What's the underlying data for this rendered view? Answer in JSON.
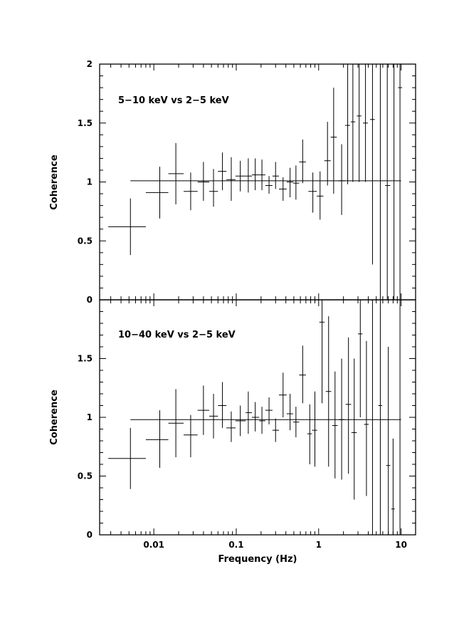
{
  "chart_data": [
    {
      "type": "scatter",
      "panel": "top",
      "annotation": "5−10 keV vs 2−5 keV",
      "ylabel": "Coherence",
      "xlabel": "",
      "xscale": "log",
      "xlim": [
        0.0022,
        15
      ],
      "ylim": [
        0,
        2
      ],
      "yticks": [
        0,
        0.5,
        1,
        1.5,
        2
      ],
      "ytick_labels": [
        "0",
        "0.5",
        "1",
        "1.5",
        "2"
      ],
      "reference_line": 1.01,
      "points": [
        {
          "x": 0.0052,
          "xlo": 0.0028,
          "xhi": 0.008,
          "y": 0.62,
          "ylo": 0.38,
          "yhi": 0.86
        },
        {
          "x": 0.0118,
          "xlo": 0.008,
          "xhi": 0.015,
          "y": 0.91,
          "ylo": 0.69,
          "yhi": 1.13
        },
        {
          "x": 0.0185,
          "xlo": 0.015,
          "xhi": 0.023,
          "y": 1.07,
          "ylo": 0.81,
          "yhi": 1.33
        },
        {
          "x": 0.028,
          "xlo": 0.023,
          "xhi": 0.034,
          "y": 0.92,
          "ylo": 0.76,
          "yhi": 1.08
        },
        {
          "x": 0.04,
          "xlo": 0.034,
          "xhi": 0.047,
          "y": 1.0,
          "ylo": 0.84,
          "yhi": 1.17
        },
        {
          "x": 0.053,
          "xlo": 0.047,
          "xhi": 0.06,
          "y": 0.92,
          "ylo": 0.79,
          "yhi": 1.11
        },
        {
          "x": 0.068,
          "xlo": 0.06,
          "xhi": 0.076,
          "y": 1.09,
          "ylo": 0.93,
          "yhi": 1.25
        },
        {
          "x": 0.087,
          "xlo": 0.076,
          "xhi": 0.098,
          "y": 1.02,
          "ylo": 0.84,
          "yhi": 1.21
        },
        {
          "x": 0.112,
          "xlo": 0.098,
          "xhi": 0.13,
          "y": 1.05,
          "ylo": 0.92,
          "yhi": 1.18
        },
        {
          "x": 0.14,
          "xlo": 0.13,
          "xhi": 0.155,
          "y": 1.05,
          "ylo": 0.91,
          "yhi": 1.2
        },
        {
          "x": 0.17,
          "xlo": 0.155,
          "xhi": 0.19,
          "y": 1.06,
          "ylo": 0.93,
          "yhi": 1.2
        },
        {
          "x": 0.205,
          "xlo": 0.19,
          "xhi": 0.225,
          "y": 1.06,
          "ylo": 0.93,
          "yhi": 1.19
        },
        {
          "x": 0.25,
          "xlo": 0.225,
          "xhi": 0.275,
          "y": 0.97,
          "ylo": 0.9,
          "yhi": 1.05
        },
        {
          "x": 0.3,
          "xlo": 0.275,
          "xhi": 0.33,
          "y": 1.05,
          "ylo": 0.94,
          "yhi": 1.17
        },
        {
          "x": 0.37,
          "xlo": 0.33,
          "xhi": 0.41,
          "y": 0.94,
          "ylo": 0.84,
          "yhi": 1.04
        },
        {
          "x": 0.45,
          "xlo": 0.41,
          "xhi": 0.49,
          "y": 1.0,
          "ylo": 0.87,
          "yhi": 1.12
        },
        {
          "x": 0.53,
          "xlo": 0.49,
          "xhi": 0.58,
          "y": 0.99,
          "ylo": 0.85,
          "yhi": 1.14
        },
        {
          "x": 0.64,
          "xlo": 0.58,
          "xhi": 0.7,
          "y": 1.17,
          "ylo": 0.99,
          "yhi": 1.36
        },
        {
          "x": 0.85,
          "xlo": 0.75,
          "xhi": 0.95,
          "y": 0.92,
          "ylo": 0.74,
          "yhi": 1.08
        },
        {
          "x": 1.04,
          "xlo": 0.95,
          "xhi": 1.14,
          "y": 0.88,
          "ylo": 0.68,
          "yhi": 1.09
        },
        {
          "x": 1.28,
          "xlo": 1.17,
          "xhi": 1.4,
          "y": 1.18,
          "ylo": 0.97,
          "yhi": 1.51
        },
        {
          "x": 1.52,
          "xlo": 1.4,
          "xhi": 1.66,
          "y": 1.38,
          "ylo": 0.9,
          "yhi": 1.8
        },
        {
          "x": 1.9,
          "xlo": 1.73,
          "xhi": 2.08,
          "y": 1.01,
          "ylo": 0.72,
          "yhi": 1.32
        },
        {
          "x": 2.25,
          "xlo": 2.1,
          "xhi": 2.4,
          "y": 1.48,
          "ylo": 0.98,
          "yhi": 2.0
        },
        {
          "x": 2.6,
          "xlo": 2.45,
          "xhi": 2.78,
          "y": 1.51,
          "ylo": 1.0,
          "yhi": 2.0
        },
        {
          "x": 3.1,
          "xlo": 2.9,
          "xhi": 3.3,
          "y": 1.56,
          "ylo": 1.0,
          "yhi": 2.0
        },
        {
          "x": 3.7,
          "xlo": 3.45,
          "xhi": 3.95,
          "y": 1.5,
          "ylo": 1.0,
          "yhi": 2.0
        },
        {
          "x": 4.5,
          "xlo": 4.2,
          "xhi": 4.8,
          "y": 1.53,
          "ylo": 0.3,
          "yhi": 2.0
        },
        {
          "x": 6.8,
          "xlo": 6.4,
          "xhi": 7.4,
          "y": 0.97,
          "ylo": 0.0,
          "yhi": 2.0
        },
        {
          "x": 9.7,
          "xlo": 9.2,
          "xhi": 10.3,
          "y": 1.8,
          "ylo": 0.0,
          "yhi": 2.0
        }
      ],
      "extra_error_bars": [
        {
          "x": 5.6,
          "ylo": 0.0,
          "yhi": 2.0
        },
        {
          "x": 8.2,
          "ylo": 0.0,
          "yhi": 2.0
        }
      ]
    },
    {
      "type": "scatter",
      "panel": "bottom",
      "annotation": "10−40 keV vs 2−5 keV",
      "ylabel": "Coherence",
      "xlabel": "Frequency (Hz)",
      "xscale": "log",
      "xlim": [
        0.0022,
        15
      ],
      "ylim": [
        0,
        2
      ],
      "yticks": [
        0,
        0.5,
        1,
        1.5
      ],
      "ytick_labels": [
        "0",
        "0.5",
        "1",
        "1.5"
      ],
      "xticks": [
        0.01,
        0.1,
        1,
        10
      ],
      "xtick_labels": [
        "0.01",
        "0.1",
        "1",
        "10"
      ],
      "reference_line": 0.98,
      "points": [
        {
          "x": 0.0052,
          "xlo": 0.0028,
          "xhi": 0.008,
          "y": 0.65,
          "ylo": 0.39,
          "yhi": 0.91
        },
        {
          "x": 0.0118,
          "xlo": 0.008,
          "xhi": 0.015,
          "y": 0.81,
          "ylo": 0.57,
          "yhi": 1.06
        },
        {
          "x": 0.0185,
          "xlo": 0.015,
          "xhi": 0.023,
          "y": 0.95,
          "ylo": 0.66,
          "yhi": 1.24
        },
        {
          "x": 0.028,
          "xlo": 0.023,
          "xhi": 0.034,
          "y": 0.85,
          "ylo": 0.66,
          "yhi": 1.02
        },
        {
          "x": 0.04,
          "xlo": 0.034,
          "xhi": 0.047,
          "y": 1.06,
          "ylo": 0.85,
          "yhi": 1.27
        },
        {
          "x": 0.053,
          "xlo": 0.047,
          "xhi": 0.06,
          "y": 1.01,
          "ylo": 0.82,
          "yhi": 1.2
        },
        {
          "x": 0.068,
          "xlo": 0.06,
          "xhi": 0.076,
          "y": 1.1,
          "ylo": 0.91,
          "yhi": 1.3
        },
        {
          "x": 0.087,
          "xlo": 0.076,
          "xhi": 0.098,
          "y": 0.91,
          "ylo": 0.79,
          "yhi": 1.05
        },
        {
          "x": 0.112,
          "xlo": 0.098,
          "xhi": 0.13,
          "y": 0.97,
          "ylo": 0.84,
          "yhi": 1.1
        },
        {
          "x": 0.14,
          "xlo": 0.13,
          "xhi": 0.155,
          "y": 1.04,
          "ylo": 0.86,
          "yhi": 1.22
        },
        {
          "x": 0.17,
          "xlo": 0.155,
          "xhi": 0.19,
          "y": 1.0,
          "ylo": 0.88,
          "yhi": 1.13
        },
        {
          "x": 0.205,
          "xlo": 0.19,
          "xhi": 0.225,
          "y": 0.97,
          "ylo": 0.86,
          "yhi": 1.09
        },
        {
          "x": 0.25,
          "xlo": 0.225,
          "xhi": 0.275,
          "y": 1.06,
          "ylo": 0.94,
          "yhi": 1.17
        },
        {
          "x": 0.3,
          "xlo": 0.275,
          "xhi": 0.33,
          "y": 0.89,
          "ylo": 0.79,
          "yhi": 0.99
        },
        {
          "x": 0.37,
          "xlo": 0.33,
          "xhi": 0.41,
          "y": 1.19,
          "ylo": 1.0,
          "yhi": 1.38
        },
        {
          "x": 0.45,
          "xlo": 0.41,
          "xhi": 0.49,
          "y": 1.03,
          "ylo": 0.89,
          "yhi": 1.2
        },
        {
          "x": 0.53,
          "xlo": 0.49,
          "xhi": 0.58,
          "y": 0.96,
          "ylo": 0.83,
          "yhi": 1.09
        },
        {
          "x": 0.64,
          "xlo": 0.58,
          "xhi": 0.7,
          "y": 1.36,
          "ylo": 1.12,
          "yhi": 1.61
        },
        {
          "x": 0.78,
          "xlo": 0.73,
          "xhi": 0.83,
          "y": 0.86,
          "ylo": 0.6,
          "yhi": 1.11
        },
        {
          "x": 0.9,
          "xlo": 0.83,
          "xhi": 0.96,
          "y": 0.89,
          "ylo": 0.58,
          "yhi": 1.22
        },
        {
          "x": 1.1,
          "xlo": 1.02,
          "xhi": 1.18,
          "y": 1.81,
          "ylo": 1.12,
          "yhi": 2.0
        },
        {
          "x": 1.32,
          "xlo": 1.22,
          "xhi": 1.42,
          "y": 1.22,
          "ylo": 0.58,
          "yhi": 1.86
        },
        {
          "x": 1.58,
          "xlo": 1.46,
          "xhi": 1.7,
          "y": 0.93,
          "ylo": 0.48,
          "yhi": 1.39
        },
        {
          "x": 1.9,
          "xlo": 1.76,
          "xhi": 2.04,
          "y": 0.98,
          "ylo": 0.47,
          "yhi": 1.5
        },
        {
          "x": 2.3,
          "xlo": 2.12,
          "xhi": 2.48,
          "y": 1.11,
          "ylo": 0.52,
          "yhi": 1.68
        },
        {
          "x": 2.7,
          "xlo": 2.5,
          "xhi": 2.9,
          "y": 0.87,
          "ylo": 0.3,
          "yhi": 1.5
        },
        {
          "x": 3.2,
          "xlo": 3.0,
          "xhi": 3.4,
          "y": 1.71,
          "ylo": 1.0,
          "yhi": 2.0
        },
        {
          "x": 3.8,
          "xlo": 3.55,
          "xhi": 4.05,
          "y": 0.94,
          "ylo": 0.33,
          "yhi": 1.65
        },
        {
          "x": 5.6,
          "xlo": 5.3,
          "xhi": 5.9,
          "y": 1.1,
          "ylo": 0.0,
          "yhi": 2.0
        },
        {
          "x": 7.0,
          "xlo": 6.6,
          "xhi": 7.4,
          "y": 0.59,
          "ylo": 0.0,
          "yhi": 1.6
        },
        {
          "x": 8.0,
          "xlo": 7.6,
          "xhi": 8.4,
          "y": 0.22,
          "ylo": 0.0,
          "yhi": 0.82
        }
      ],
      "extra_error_bars": [
        {
          "x": 4.5,
          "ylo": 0.0,
          "yhi": 2.0
        },
        {
          "x": 9.7,
          "ylo": 0.0,
          "yhi": 2.0
        }
      ]
    }
  ]
}
